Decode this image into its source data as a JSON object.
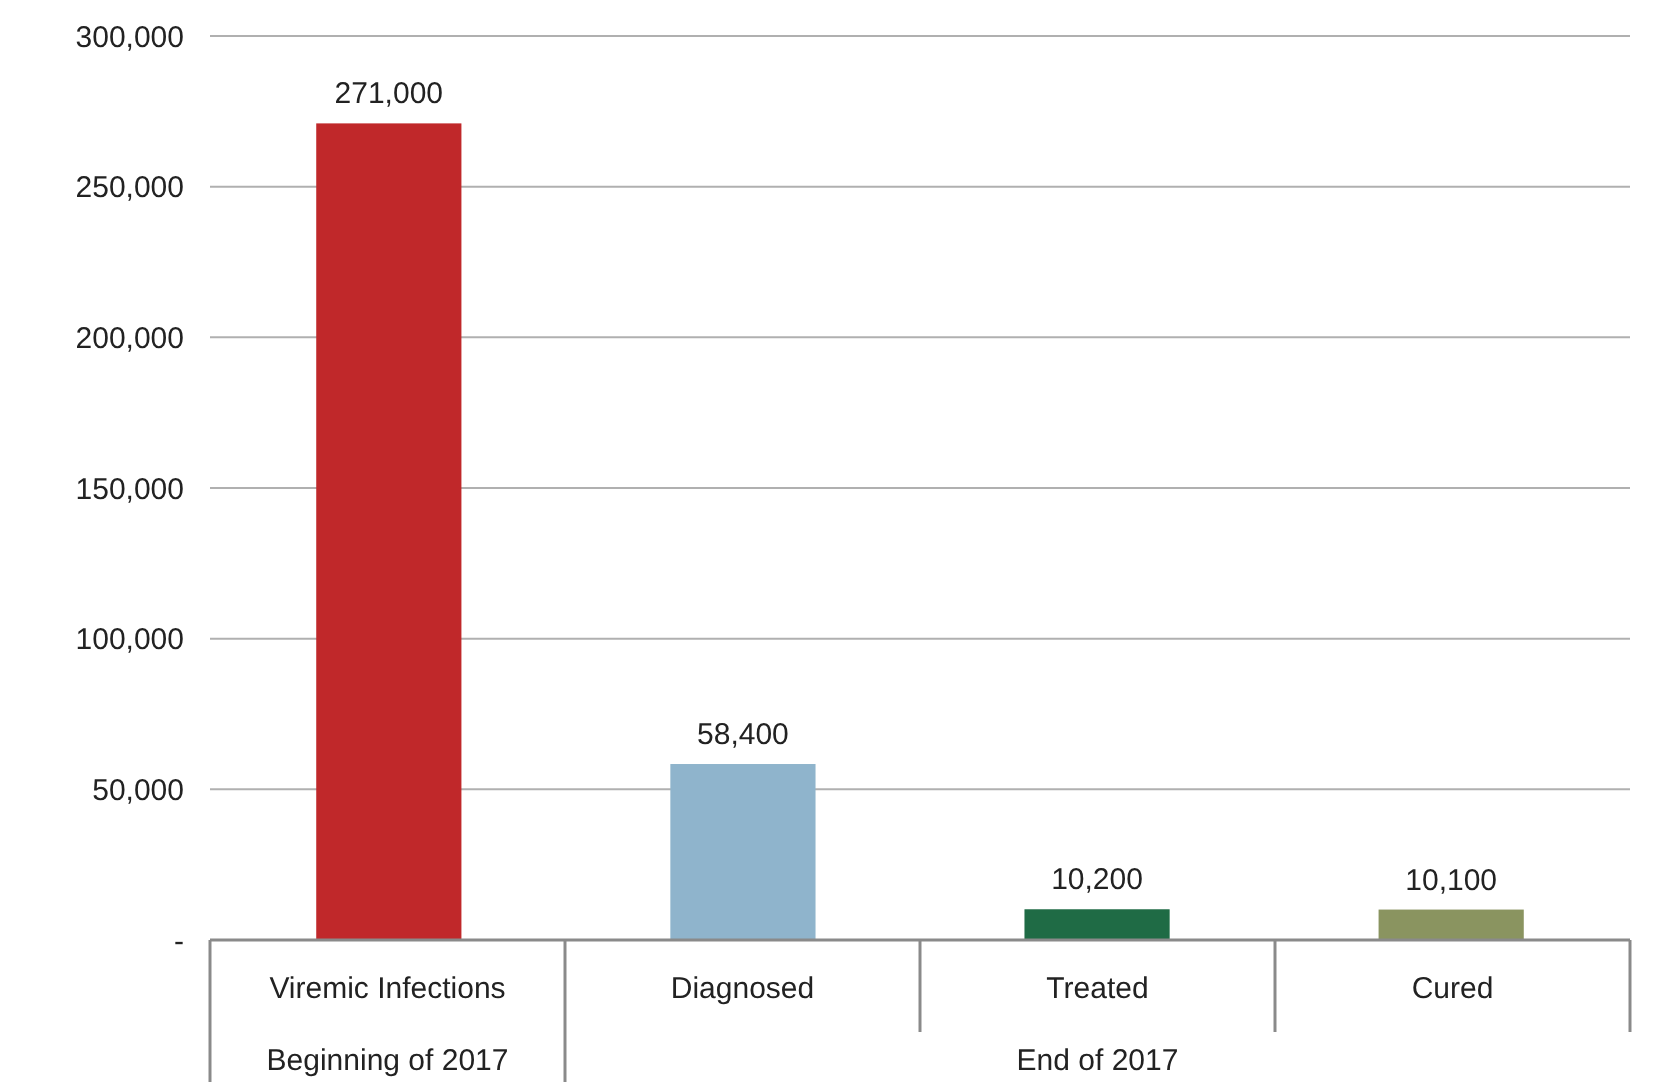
{
  "chart_data": {
    "type": "bar",
    "categories": [
      "Viremic Infections",
      "Diagnosed",
      "Treated",
      "Cured"
    ],
    "values": [
      271000,
      58400,
      10200,
      10100
    ],
    "colors": [
      "#c0282a",
      "#8fb4cc",
      "#1f6b45",
      "#8a9460"
    ],
    "ylim": [
      0,
      300000
    ],
    "yticks": [
      {
        "value": 0,
        "label": "-"
      },
      {
        "value": 50000,
        "label": "50,000"
      },
      {
        "value": 100000,
        "label": "100,000"
      },
      {
        "value": 150000,
        "label": "150,000"
      },
      {
        "value": 200000,
        "label": "200,000"
      },
      {
        "value": 250000,
        "label": "250,000"
      },
      {
        "value": 300000,
        "label": "300,000"
      }
    ],
    "grid": "y",
    "value_labels": [
      "271,000",
      "58,400",
      "10,200",
      "10,100"
    ],
    "annotations": [
      "Beginning of 2017",
      "End of 2017"
    ]
  }
}
